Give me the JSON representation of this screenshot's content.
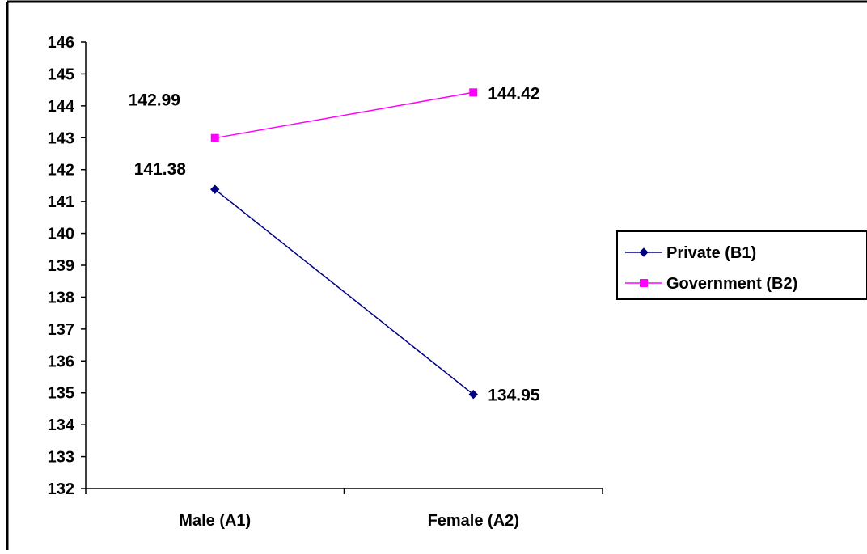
{
  "chart_data": {
    "type": "line",
    "categories": [
      "Male (A1)",
      "Female (A2)"
    ],
    "series": [
      {
        "name": "Private (B1)",
        "values": [
          141.38,
          134.95
        ],
        "data_labels": [
          "141.38",
          "134.95"
        ],
        "color": "#000080",
        "marker": "diamond"
      },
      {
        "name": "Government (B2)",
        "values": [
          142.99,
          144.42
        ],
        "data_labels": [
          "142.99",
          "144.42"
        ],
        "color": "#ff00ff",
        "marker": "square"
      }
    ],
    "ylim": [
      132,
      146
    ],
    "yticks": [
      "132",
      "133",
      "134",
      "135",
      "136",
      "137",
      "138",
      "139",
      "140",
      "141",
      "142",
      "143",
      "144",
      "145",
      "146"
    ],
    "grid": false,
    "legend_position": "right",
    "title": "",
    "xlabel": "",
    "ylabel": ""
  }
}
